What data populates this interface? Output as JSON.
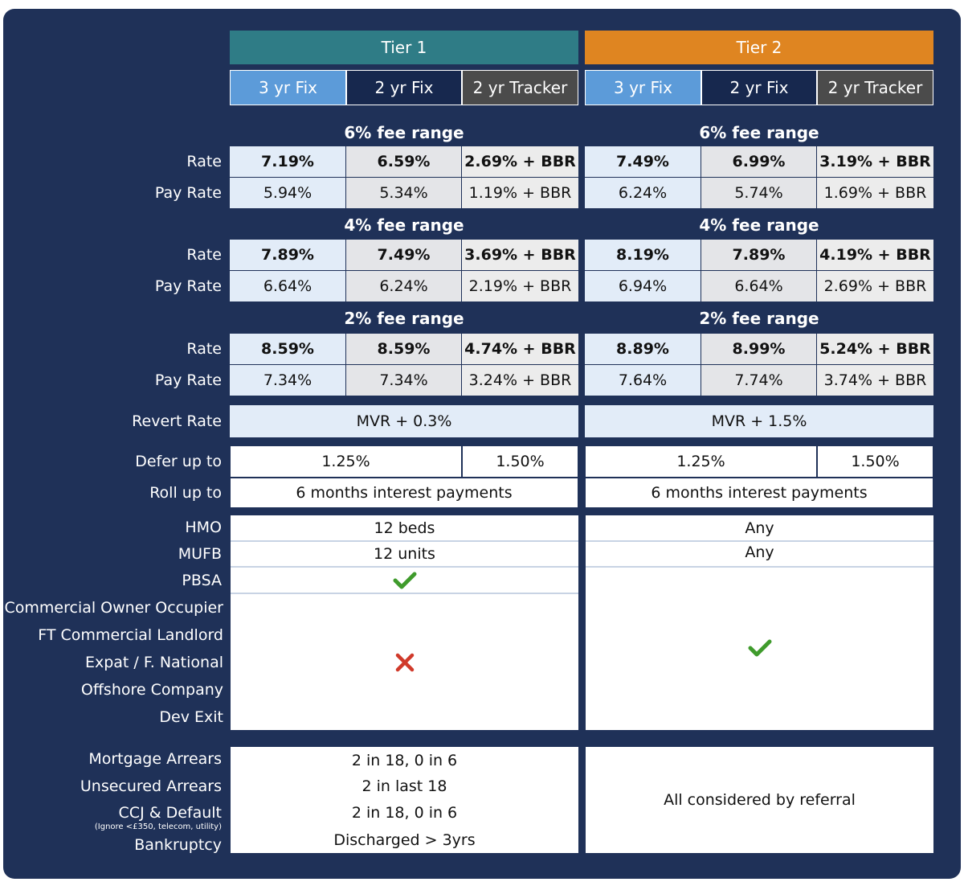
{
  "tiers": [
    {
      "name": "Tier 1",
      "products": [
        "3 yr Fix",
        "2 yr Fix",
        "2 yr Tracker"
      ],
      "fee_ranges": [
        {
          "label": "6% fee range",
          "rate": [
            "7.19%",
            "6.59%",
            "2.69% + BBR"
          ],
          "pay_rate": [
            "5.94%",
            "5.34%",
            "1.19% + BBR"
          ]
        },
        {
          "label": "4% fee range",
          "rate": [
            "7.89%",
            "7.49%",
            "3.69% + BBR"
          ],
          "pay_rate": [
            "6.64%",
            "6.24%",
            "2.19% + BBR"
          ]
        },
        {
          "label": "2% fee range",
          "rate": [
            "8.59%",
            "8.59%",
            "4.74% + BBR"
          ],
          "pay_rate": [
            "7.34%",
            "7.34%",
            "3.24% + BBR"
          ]
        }
      ],
      "revert_rate": "MVR + 0.3%",
      "defer": [
        "1.25%",
        "1.50%"
      ],
      "roll_up": "6 months interest payments",
      "hmo": "12 beds",
      "mufb": "12 units",
      "arrears": [
        "2 in 18, 0 in 6",
        "2 in last 18",
        "2 in 18, 0 in 6",
        "Discharged > 3yrs"
      ]
    },
    {
      "name": "Tier 2",
      "products": [
        "3 yr Fix",
        "2 yr Fix",
        "2 yr Tracker"
      ],
      "fee_ranges": [
        {
          "label": "6% fee range",
          "rate": [
            "7.49%",
            "6.99%",
            "3.19% + BBR"
          ],
          "pay_rate": [
            "6.24%",
            "5.74%",
            "1.69% + BBR"
          ]
        },
        {
          "label": "4% fee range",
          "rate": [
            "8.19%",
            "7.89%",
            "4.19% + BBR"
          ],
          "pay_rate": [
            "6.94%",
            "6.64%",
            "2.69% + BBR"
          ]
        },
        {
          "label": "2% fee range",
          "rate": [
            "8.89%",
            "8.99%",
            "5.24% + BBR"
          ],
          "pay_rate": [
            "7.64%",
            "7.74%",
            "3.74% + BBR"
          ]
        }
      ],
      "revert_rate": "MVR + 1.5%",
      "defer": [
        "1.25%",
        "1.50%"
      ],
      "roll_up": "6 months interest payments",
      "hmo": "Any",
      "mufb": "Any",
      "arrears_all": "All considered by referral"
    }
  ],
  "labels": {
    "rate": "Rate",
    "pay_rate": "Pay Rate",
    "revert_rate": "Revert Rate",
    "defer": "Defer up to",
    "roll_up": "Roll up to",
    "hmo": "HMO",
    "mufb": "MUFB",
    "pbsa": "PBSA",
    "commercial_owner": "Commercial Owner Occupier",
    "ft_commercial": "FT Commercial Landlord",
    "expat": "Expat / F. National",
    "offshore": "Offshore Company",
    "dev_exit": "Dev Exit",
    "mortgage_arrears": "Mortgage Arrears",
    "unsecured_arrears": "Unsecured Arrears",
    "ccj": "CCJ & Default",
    "ccj_note": "(Ignore <£350, telecom, utility)",
    "bankruptcy": "Bankruptcy"
  },
  "colors": {
    "background": "#1f3158",
    "tier1": "#2f7c86",
    "tier2": "#df8521",
    "check": "#3f9b2c",
    "cross": "#d03a2b"
  },
  "icons": {
    "tier1_pbsa": "check-icon",
    "tier1_other": "cross-icon",
    "tier2_other": "check-icon"
  }
}
